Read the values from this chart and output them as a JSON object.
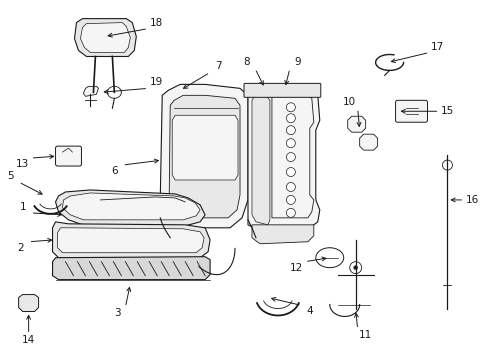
{
  "bg_color": "#ffffff",
  "lc": "#1a1a1a",
  "fc_light": "#f5f5f5",
  "fc_mid": "#e8e8e8",
  "fc_dark": "#d8d8d8",
  "lw": 0.8,
  "figsize": [
    4.89,
    3.6
  ],
  "dpi": 100
}
